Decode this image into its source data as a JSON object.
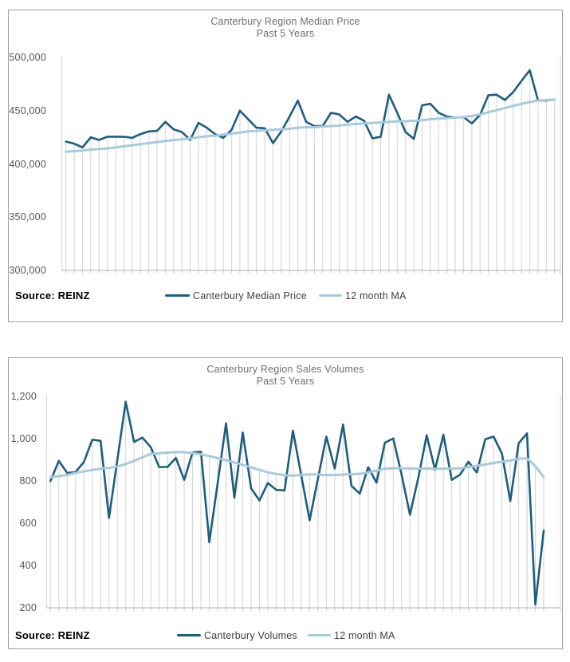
{
  "chart_data": [
    {
      "type": "line",
      "title": "Canterbury Region Median Price",
      "subtitle": "Past 5 Years",
      "source": "Source: REINZ",
      "x_axis": {
        "tick_labels_visible": false,
        "points": 60,
        "unit": "month"
      },
      "ylim": [
        300000,
        500000
      ],
      "y_ticks": [
        500000,
        450000,
        400000,
        350000,
        300000
      ],
      "y_tick_labels": [
        "500,000",
        "450,000",
        "400,000",
        "350,000",
        "300,000"
      ],
      "grid": false,
      "drop_lines": true,
      "legend_position": "bottom",
      "series": [
        {
          "name": "Canterbury Median Price",
          "color": "#1d5e7d",
          "values": [
            421000,
            419000,
            415500,
            425000,
            422500,
            425500,
            425500,
            425500,
            424500,
            428000,
            430500,
            431000,
            439500,
            432500,
            430000,
            422500,
            438500,
            434000,
            428000,
            424500,
            432000,
            450000,
            442000,
            434000,
            433500,
            419500,
            430500,
            444500,
            459500,
            439500,
            435500,
            435500,
            448000,
            446500,
            439500,
            444500,
            440500,
            424000,
            425500,
            465000,
            448000,
            430000,
            423500,
            455000,
            456500,
            448000,
            444500,
            443500,
            444000,
            438000,
            446000,
            464500,
            465000,
            460000,
            467500,
            478000,
            488000,
            459500,
            459500,
            460500
          ]
        },
        {
          "name": "12 month MA",
          "color": "#a7cade",
          "values": [
            411500,
            412000,
            412500,
            413500,
            414000,
            414500,
            415500,
            416500,
            417500,
            418500,
            419500,
            420500,
            421500,
            422500,
            423000,
            424000,
            425000,
            426000,
            426500,
            427500,
            428500,
            429500,
            430500,
            431000,
            431500,
            432000,
            432500,
            433000,
            434000,
            434500,
            434500,
            435000,
            435500,
            436000,
            437000,
            437500,
            438000,
            438500,
            439000,
            439500,
            440000,
            440000,
            440500,
            441000,
            442000,
            442500,
            443000,
            443500,
            444000,
            445000,
            446500,
            448500,
            450500,
            452500,
            454500,
            456500,
            458000,
            459500,
            460000,
            460500
          ]
        }
      ]
    },
    {
      "type": "line",
      "title": "Canterbury Region Sales Volumes",
      "subtitle": "Past 5 Years",
      "source": "Source: REINZ",
      "x_axis": {
        "tick_labels_visible": false,
        "points": 60,
        "unit": "month"
      },
      "ylim": [
        200,
        1200
      ],
      "y_ticks": [
        1200,
        1000,
        800,
        600,
        400,
        200
      ],
      "y_tick_labels": [
        "1,200",
        "1,000",
        "800",
        "600",
        "400",
        "200"
      ],
      "grid": false,
      "drop_lines": true,
      "legend_position": "bottom",
      "series": [
        {
          "name": "Canterbury Volumes",
          "color": "#1d5e7d",
          "values": [
            800,
            895,
            838,
            842,
            890,
            995,
            990,
            625,
            900,
            1175,
            985,
            1005,
            960,
            866,
            866,
            909,
            805,
            935,
            938,
            510,
            790,
            1073,
            721,
            1029,
            765,
            708,
            790,
            758,
            755,
            1038,
            826,
            614,
            812,
            1010,
            859,
            1067,
            777,
            740,
            865,
            792,
            981,
            1001,
            830,
            640,
            815,
            1016,
            853,
            1019,
            805,
            830,
            891,
            840,
            997,
            1010,
            930,
            705,
            978,
            1025,
            215,
            565
          ]
        },
        {
          "name": "12 month MA",
          "color": "#a7cade",
          "values": [
            818,
            823,
            828,
            838,
            845,
            852,
            858,
            862,
            868,
            880,
            895,
            912,
            928,
            931,
            934,
            937,
            936,
            932,
            926,
            918,
            908,
            898,
            888,
            876,
            865,
            852,
            841,
            833,
            827,
            825,
            828,
            831,
            830,
            828,
            828,
            830,
            832,
            834,
            840,
            848,
            858,
            860,
            860,
            859,
            858,
            859,
            857,
            858,
            858,
            860,
            865,
            872,
            878,
            885,
            891,
            897,
            905,
            907,
            870,
            818
          ]
        }
      ]
    }
  ],
  "style": {
    "drop_line_color": "#d9d9d9",
    "axis_color": "#bfbfbf",
    "border_color": "#d4d4d4"
  }
}
